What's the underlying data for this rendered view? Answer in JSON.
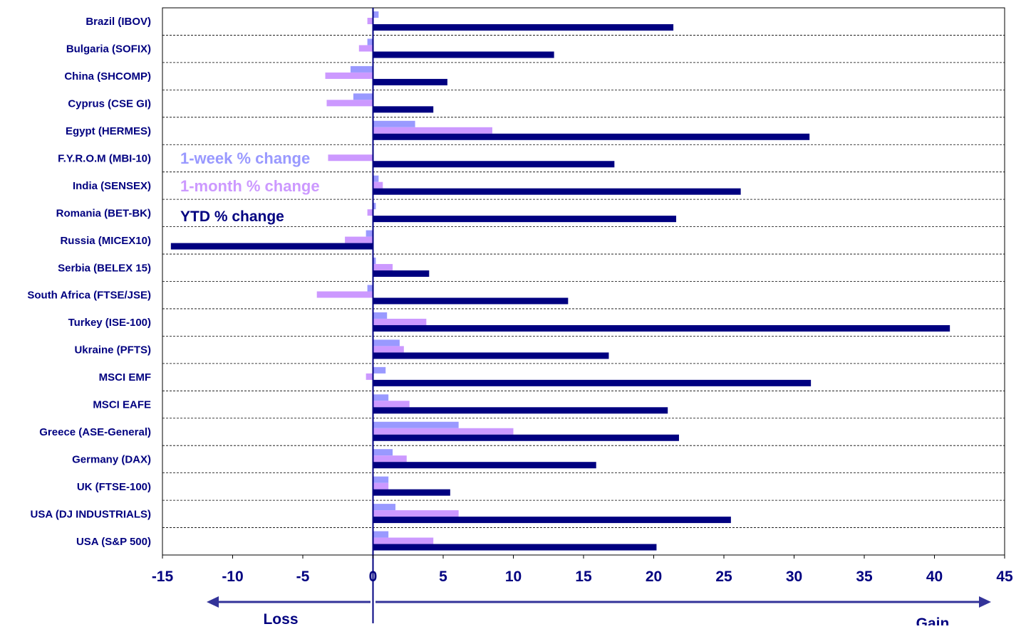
{
  "chart_data": {
    "type": "bar",
    "orientation": "horizontal",
    "categories": [
      "Brazil (IBOV)",
      "Bulgaria (SOFIX)",
      "China (SHCOMP)",
      "Cyprus (CSE GI)",
      "Egypt (HERMES)",
      "F.Y.R.O.M (MBI-10)",
      "India (SENSEX)",
      "Romania (BET-BK)",
      "Russia (MICEX10)",
      "Serbia (BELEX 15)",
      "South Africa (FTSE/JSE)",
      "Turkey (ISE-100)",
      "Ukraine (PFTS)",
      "MSCI EMF",
      "MSCI EAFE",
      "Greece (ASE-General)",
      "Germany (DAX)",
      "UK (FTSE-100)",
      "USA (DJ INDUSTRIALS)",
      "USA (S&P 500)"
    ],
    "series": [
      {
        "name": "1-week % change",
        "color": "#9999ff",
        "values": [
          0.4,
          -0.4,
          -1.6,
          -1.4,
          3.0,
          0.0,
          0.4,
          0.2,
          -0.5,
          0.2,
          -0.4,
          1.0,
          1.9,
          0.9,
          1.1,
          6.1,
          1.4,
          1.1,
          1.6,
          1.1
        ]
      },
      {
        "name": "1-month % change",
        "color": "#cc99ff",
        "values": [
          -0.4,
          -1.0,
          -3.4,
          -3.3,
          8.5,
          -3.2,
          0.7,
          -0.4,
          -2.0,
          1.4,
          -4.0,
          3.8,
          2.2,
          -0.5,
          2.6,
          10.0,
          2.4,
          1.1,
          6.1,
          4.3
        ]
      },
      {
        "name": "YTD % change",
        "color": "#000080",
        "values": [
          21.4,
          12.9,
          5.3,
          4.3,
          31.1,
          17.2,
          26.2,
          21.6,
          -14.4,
          4.0,
          13.9,
          41.1,
          16.8,
          31.2,
          21.0,
          21.8,
          15.9,
          5.5,
          25.5,
          20.2
        ]
      }
    ],
    "xlim": [
      -15,
      45
    ],
    "xticks": [
      "-15",
      "-10",
      "-5",
      "0",
      "5",
      "10",
      "15",
      "20",
      "25",
      "30",
      "35",
      "40",
      "45"
    ],
    "grid": "horizontal dashed separators",
    "legend": {
      "placement": "inside-left",
      "items": [
        "1-week % change",
        "1-month % change",
        "YTD % change"
      ]
    },
    "annotations": {
      "loss": "Loss",
      "gain": "Gain"
    },
    "title": "",
    "xlabel": "",
    "ylabel": "",
    "arrow_color": "#333399"
  }
}
